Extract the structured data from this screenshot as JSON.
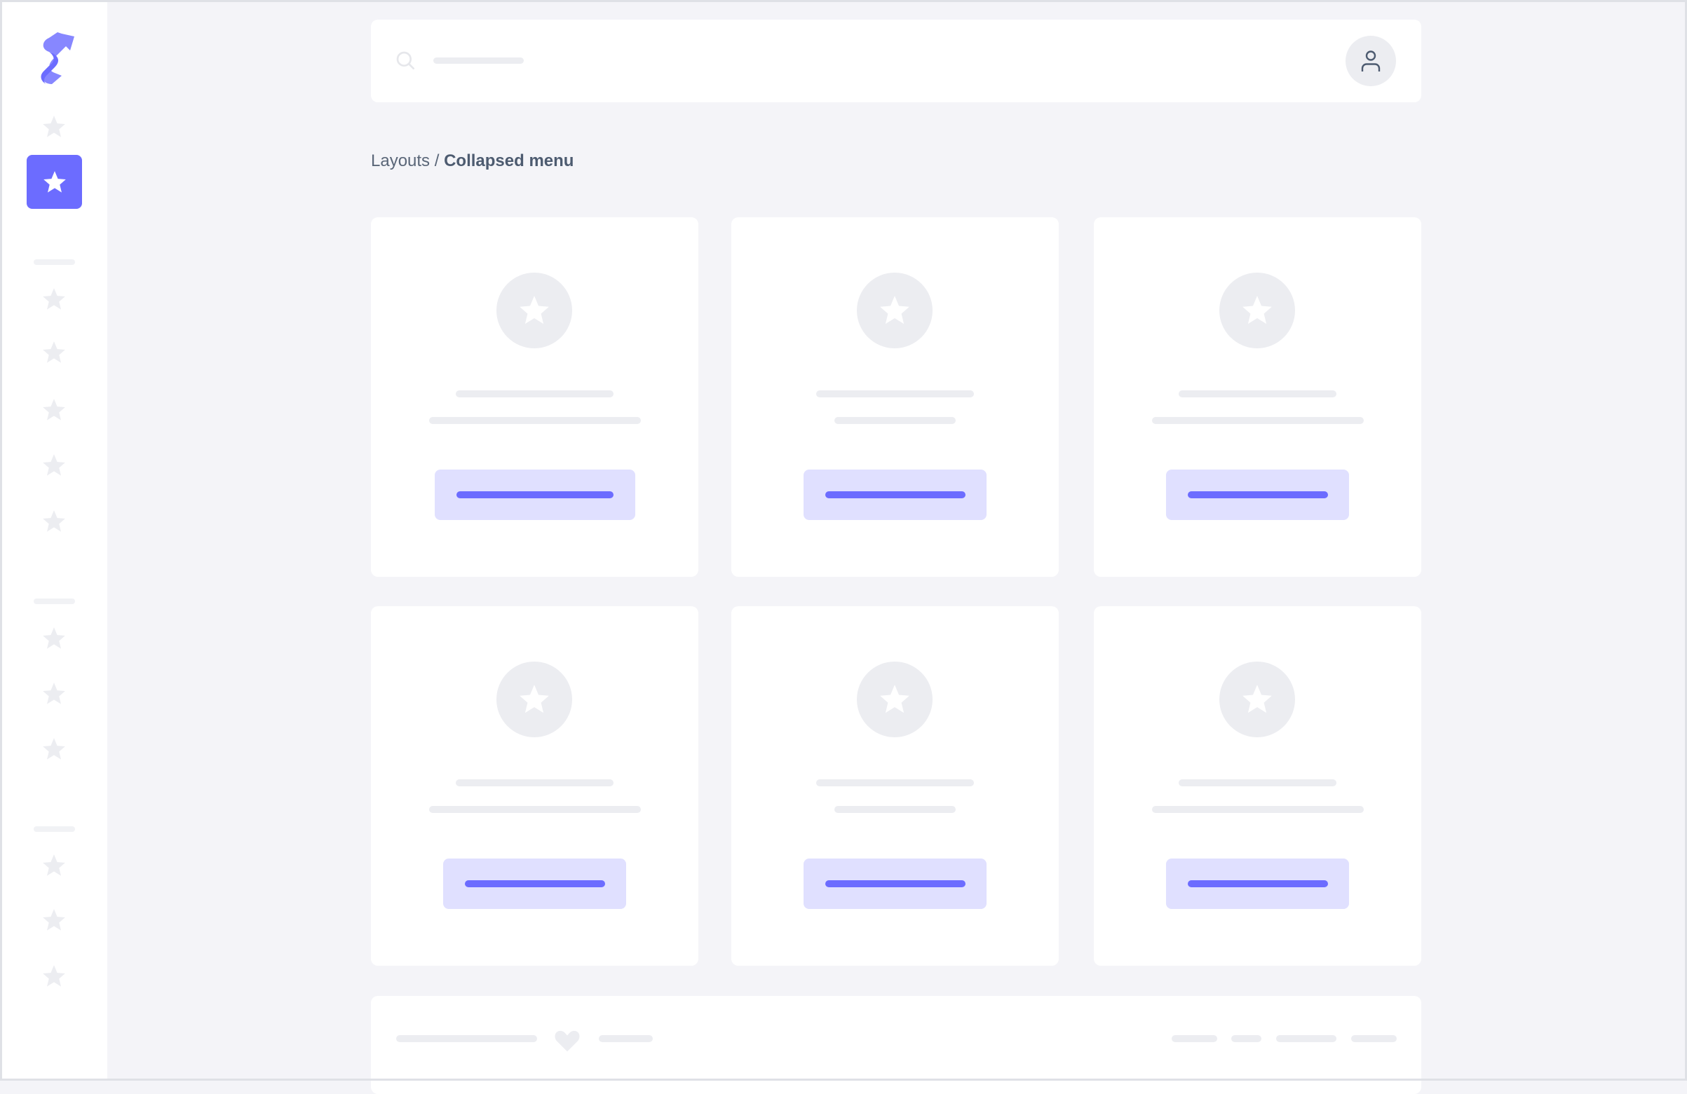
{
  "breadcrumb": {
    "parent": "Layouts",
    "separator": " / ",
    "current": "Collapsed menu"
  },
  "colors": {
    "accent": "#6c6cff",
    "accent_light": "#e0e0ff",
    "placeholder": "#ecedf1",
    "background": "#f4f4f8"
  },
  "icons": {
    "logo": "brand-s-logo",
    "nav": "star-icon",
    "search": "search-icon",
    "user": "user-icon",
    "card": "star-icon",
    "footer": "heart-icon"
  }
}
